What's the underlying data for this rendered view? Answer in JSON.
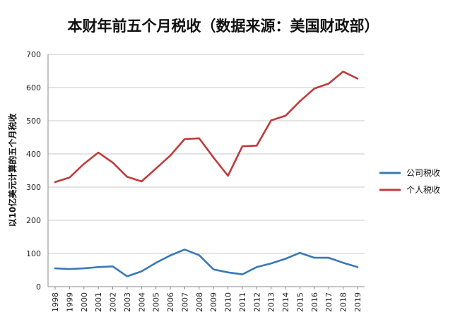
{
  "chart_data": {
    "type": "line",
    "title": "本财年前五个月税收（数据来源：美国财政部）",
    "ylabel": "以10亿美元计算的五个月税收",
    "xlabel": "",
    "ylim": [
      0,
      700
    ],
    "yticks": [
      0,
      100,
      200,
      300,
      400,
      500,
      600,
      700
    ],
    "grid": true,
    "legend_position": "right",
    "categories": [
      "1998",
      "1999",
      "2000",
      "2001",
      "2002",
      "2003",
      "2004",
      "2005",
      "2006",
      "2007",
      "2008",
      "2009",
      "2010",
      "2011",
      "2012",
      "2013",
      "2014",
      "2015",
      "2016",
      "2017",
      "2018",
      "2019"
    ],
    "series": [
      {
        "name": "公司税收",
        "color": "#3a78b8",
        "values": [
          55,
          53,
          55,
          59,
          61,
          31,
          46,
          72,
          94,
          112,
          95,
          52,
          43,
          37,
          59,
          70,
          84,
          102,
          87,
          87,
          72,
          59
        ]
      },
      {
        "name": "个人税收",
        "color": "#bf3b3b",
        "values": [
          315,
          329,
          370,
          404,
          374,
          331,
          317,
          356,
          395,
          445,
          447,
          389,
          334,
          423,
          425,
          501,
          515,
          559,
          597,
          612,
          648,
          627
        ]
      }
    ]
  }
}
